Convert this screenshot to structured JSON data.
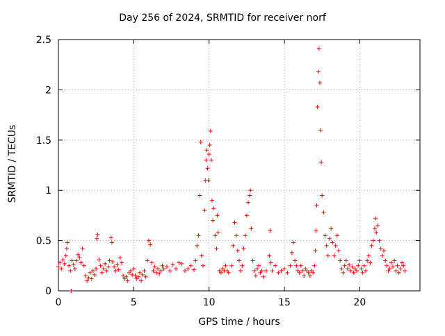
{
  "chart_data": {
    "type": "scatter",
    "title": "Day 256 of 2024, SRMTID for receiver norf",
    "xlabel": "GPS time / hours",
    "ylabel": "SRMTID / TECUs",
    "xlim": [
      0,
      24
    ],
    "ylim": [
      0,
      2.5
    ],
    "x_ticks": [
      0,
      5,
      10,
      15,
      20
    ],
    "y_ticks": [
      0,
      0.5,
      1,
      1.5,
      2,
      2.5
    ],
    "x_tick_labels": [
      "0",
      "5",
      "10",
      "15",
      "20"
    ],
    "y_tick_labels": [
      "0",
      "0.5",
      "1",
      "1.5",
      "2",
      "2.5"
    ],
    "grid": true,
    "marker": "+",
    "color": "#ff0000",
    "series": [
      {
        "name": "SRMTID",
        "points": [
          [
            0.0,
            0.24
          ],
          [
            0.1,
            0.28
          ],
          [
            0.2,
            0.22
          ],
          [
            0.3,
            0.31
          ],
          [
            0.4,
            0.27
          ],
          [
            0.5,
            0.35
          ],
          [
            0.55,
            0.42
          ],
          [
            0.6,
            0.48
          ],
          [
            0.7,
            0.25
          ],
          [
            0.8,
            0.2
          ],
          [
            0.85,
            0.0
          ],
          [
            0.9,
            0.3
          ],
          [
            1.0,
            0.26
          ],
          [
            1.1,
            0.22
          ],
          [
            1.2,
            0.3
          ],
          [
            1.3,
            0.36
          ],
          [
            1.4,
            0.33
          ],
          [
            1.5,
            0.28
          ],
          [
            1.6,
            0.42
          ],
          [
            1.7,
            0.25
          ],
          [
            1.8,
            0.15
          ],
          [
            1.9,
            0.1
          ],
          [
            2.0,
            0.13
          ],
          [
            2.1,
            0.18
          ],
          [
            2.2,
            0.12
          ],
          [
            2.3,
            0.2
          ],
          [
            2.4,
            0.16
          ],
          [
            2.5,
            0.22
          ],
          [
            2.55,
            0.52
          ],
          [
            2.6,
            0.56
          ],
          [
            2.7,
            0.31
          ],
          [
            2.8,
            0.25
          ],
          [
            2.9,
            0.18
          ],
          [
            3.0,
            0.22
          ],
          [
            3.1,
            0.27
          ],
          [
            3.2,
            0.2
          ],
          [
            3.3,
            0.24
          ],
          [
            3.4,
            0.3
          ],
          [
            3.5,
            0.53
          ],
          [
            3.55,
            0.48
          ],
          [
            3.6,
            0.29
          ],
          [
            3.7,
            0.24
          ],
          [
            3.8,
            0.2
          ],
          [
            3.9,
            0.26
          ],
          [
            4.0,
            0.21
          ],
          [
            4.1,
            0.33
          ],
          [
            4.2,
            0.28
          ],
          [
            4.3,
            0.15
          ],
          [
            4.4,
            0.12
          ],
          [
            4.5,
            0.14
          ],
          [
            4.6,
            0.1
          ],
          [
            4.7,
            0.18
          ],
          [
            4.8,
            0.2
          ],
          [
            4.9,
            0.16
          ],
          [
            5.0,
            0.22
          ],
          [
            5.1,
            0.15
          ],
          [
            5.2,
            0.12
          ],
          [
            5.3,
            0.14
          ],
          [
            5.4,
            0.18
          ],
          [
            5.5,
            0.1
          ],
          [
            5.6,
            0.16
          ],
          [
            5.7,
            0.2
          ],
          [
            5.8,
            0.14
          ],
          [
            5.9,
            0.3
          ],
          [
            6.0,
            0.5
          ],
          [
            6.1,
            0.46
          ],
          [
            6.2,
            0.28
          ],
          [
            6.3,
            0.2
          ],
          [
            6.4,
            0.24
          ],
          [
            6.5,
            0.18
          ],
          [
            6.6,
            0.22
          ],
          [
            6.7,
            0.17
          ],
          [
            6.8,
            0.2
          ],
          [
            6.9,
            0.25
          ],
          [
            7.0,
            0.22
          ],
          [
            7.2,
            0.24
          ],
          [
            7.4,
            0.2
          ],
          [
            7.6,
            0.26
          ],
          [
            7.8,
            0.22
          ],
          [
            8.0,
            0.28
          ],
          [
            8.2,
            0.27
          ],
          [
            8.4,
            0.2
          ],
          [
            8.6,
            0.22
          ],
          [
            8.8,
            0.25
          ],
          [
            9.0,
            0.21
          ],
          [
            9.1,
            0.3
          ],
          [
            9.2,
            0.45
          ],
          [
            9.3,
            0.55
          ],
          [
            9.4,
            0.95
          ],
          [
            9.45,
            1.48
          ],
          [
            9.5,
            0.35
          ],
          [
            9.6,
            0.25
          ],
          [
            9.7,
            0.8
          ],
          [
            9.75,
            1.1
          ],
          [
            9.8,
            1.3
          ],
          [
            9.85,
            1.4
          ],
          [
            9.9,
            1.22
          ],
          [
            9.95,
            1.1
          ],
          [
            10.0,
            1.36
          ],
          [
            10.05,
            1.45
          ],
          [
            10.1,
            1.59
          ],
          [
            10.15,
            1.3
          ],
          [
            10.2,
            0.9
          ],
          [
            10.25,
            0.7
          ],
          [
            10.3,
            0.82
          ],
          [
            10.4,
            0.55
          ],
          [
            10.5,
            0.42
          ],
          [
            10.55,
            0.75
          ],
          [
            10.6,
            0.58
          ],
          [
            10.7,
            0.2
          ],
          [
            10.8,
            0.18
          ],
          [
            10.9,
            0.22
          ],
          [
            11.0,
            0.2
          ],
          [
            11.1,
            0.25
          ],
          [
            11.2,
            0.2
          ],
          [
            11.3,
            0.18
          ],
          [
            11.5,
            0.25
          ],
          [
            11.6,
            0.45
          ],
          [
            11.7,
            0.68
          ],
          [
            11.8,
            0.55
          ],
          [
            11.9,
            0.4
          ],
          [
            12.0,
            0.3
          ],
          [
            12.1,
            0.2
          ],
          [
            12.2,
            0.25
          ],
          [
            12.3,
            0.42
          ],
          [
            12.4,
            0.55
          ],
          [
            12.5,
            0.75
          ],
          [
            12.6,
            0.88
          ],
          [
            12.7,
            0.95
          ],
          [
            12.75,
            1.0
          ],
          [
            12.8,
            0.62
          ],
          [
            12.9,
            0.3
          ],
          [
            13.0,
            0.2
          ],
          [
            13.1,
            0.15
          ],
          [
            13.2,
            0.22
          ],
          [
            13.3,
            0.25
          ],
          [
            13.4,
            0.18
          ],
          [
            13.5,
            0.2
          ],
          [
            13.6,
            0.14
          ],
          [
            13.8,
            0.2
          ],
          [
            14.0,
            0.35
          ],
          [
            14.05,
            0.6
          ],
          [
            14.1,
            0.28
          ],
          [
            14.2,
            0.2
          ],
          [
            14.4,
            0.25
          ],
          [
            14.6,
            0.18
          ],
          [
            14.8,
            0.2
          ],
          [
            15.0,
            0.22
          ],
          [
            15.2,
            0.18
          ],
          [
            15.4,
            0.25
          ],
          [
            15.5,
            0.38
          ],
          [
            15.6,
            0.48
          ],
          [
            15.7,
            0.3
          ],
          [
            15.8,
            0.25
          ],
          [
            15.9,
            0.2
          ],
          [
            16.0,
            0.18
          ],
          [
            16.1,
            0.25
          ],
          [
            16.2,
            0.2
          ],
          [
            16.3,
            0.15
          ],
          [
            16.4,
            0.22
          ],
          [
            16.5,
            0.2
          ],
          [
            16.6,
            0.18
          ],
          [
            16.7,
            0.15
          ],
          [
            16.8,
            0.2
          ],
          [
            16.9,
            0.18
          ],
          [
            17.0,
            0.25
          ],
          [
            17.05,
            0.4
          ],
          [
            17.1,
            0.6
          ],
          [
            17.15,
            0.85
          ],
          [
            17.2,
            1.83
          ],
          [
            17.25,
            2.18
          ],
          [
            17.3,
            2.41
          ],
          [
            17.35,
            2.07
          ],
          [
            17.4,
            1.6
          ],
          [
            17.45,
            1.28
          ],
          [
            17.5,
            0.95
          ],
          [
            17.6,
            0.78
          ],
          [
            17.7,
            0.55
          ],
          [
            17.8,
            0.45
          ],
          [
            17.9,
            0.35
          ],
          [
            18.0,
            0.52
          ],
          [
            18.1,
            0.62
          ],
          [
            18.2,
            0.48
          ],
          [
            18.3,
            0.35
          ],
          [
            18.4,
            0.45
          ],
          [
            18.5,
            0.55
          ],
          [
            18.6,
            0.4
          ],
          [
            18.7,
            0.3
          ],
          [
            18.8,
            0.22
          ],
          [
            18.9,
            0.18
          ],
          [
            19.0,
            0.25
          ],
          [
            19.1,
            0.3
          ],
          [
            19.2,
            0.22
          ],
          [
            19.3,
            0.26
          ],
          [
            19.4,
            0.2
          ],
          [
            19.5,
            0.24
          ],
          [
            19.6,
            0.18
          ],
          [
            19.7,
            0.22
          ],
          [
            19.8,
            0.2
          ],
          [
            19.9,
            0.25
          ],
          [
            20.0,
            0.3
          ],
          [
            20.1,
            0.22
          ],
          [
            20.2,
            0.18
          ],
          [
            20.3,
            0.25
          ],
          [
            20.4,
            0.2
          ],
          [
            20.5,
            0.3
          ],
          [
            20.6,
            0.35
          ],
          [
            20.7,
            0.28
          ],
          [
            20.8,
            0.45
          ],
          [
            20.9,
            0.5
          ],
          [
            21.0,
            0.62
          ],
          [
            21.05,
            0.72
          ],
          [
            21.1,
            0.58
          ],
          [
            21.2,
            0.65
          ],
          [
            21.3,
            0.5
          ],
          [
            21.4,
            0.42
          ],
          [
            21.5,
            0.35
          ],
          [
            21.6,
            0.4
          ],
          [
            21.7,
            0.3
          ],
          [
            21.8,
            0.25
          ],
          [
            21.9,
            0.2
          ],
          [
            22.0,
            0.22
          ],
          [
            22.1,
            0.28
          ],
          [
            22.2,
            0.24
          ],
          [
            22.3,
            0.3
          ],
          [
            22.4,
            0.2
          ],
          [
            22.5,
            0.25
          ],
          [
            22.6,
            0.18
          ],
          [
            22.7,
            0.22
          ],
          [
            22.8,
            0.28
          ],
          [
            22.9,
            0.25
          ],
          [
            23.0,
            0.2
          ]
        ]
      }
    ]
  }
}
